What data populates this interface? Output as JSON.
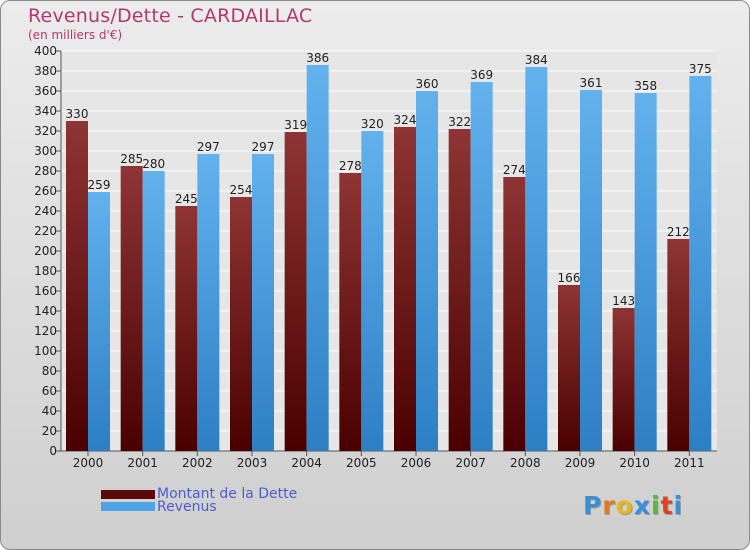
{
  "header": {
    "title": "Revenus/Dette - CARDAILLAC",
    "subtitle": "(en milliers d'€)"
  },
  "chart_data": {
    "type": "bar",
    "categories": [
      "2000",
      "2001",
      "2002",
      "2003",
      "2004",
      "2005",
      "2006",
      "2007",
      "2008",
      "2009",
      "2010",
      "2011"
    ],
    "series": [
      {
        "name": "Montant de la Dette",
        "values": [
          330,
          285,
          245,
          254,
          319,
          278,
          324,
          322,
          274,
          166,
          143,
          212
        ],
        "color": "#7a1a1a"
      },
      {
        "name": "Revenus",
        "values": [
          259,
          280,
          297,
          297,
          386,
          320,
          360,
          369,
          384,
          361,
          358,
          375
        ],
        "color": "#4da3e6"
      }
    ],
    "ylim": [
      0,
      400
    ],
    "yticks": [
      0,
      20,
      40,
      60,
      80,
      100,
      120,
      140,
      160,
      180,
      200,
      220,
      240,
      260,
      280,
      300,
      320,
      340,
      360,
      380,
      400
    ],
    "grid": true,
    "legend_position": "bottom-left"
  },
  "legend": {
    "items": [
      {
        "label": "Montant de la Dette",
        "color": "#5a0a0a"
      },
      {
        "label": "Revenus",
        "color": "#4da3e6"
      }
    ]
  },
  "logo": {
    "letters": [
      "P",
      "r",
      "o",
      "x",
      "i",
      "t",
      "i"
    ],
    "colors": [
      "#3a8fd8",
      "#e07b1f",
      "#e8b820",
      "#3a8fd8",
      "#5cb83a",
      "#e0421f",
      "#3a8fd8"
    ]
  }
}
